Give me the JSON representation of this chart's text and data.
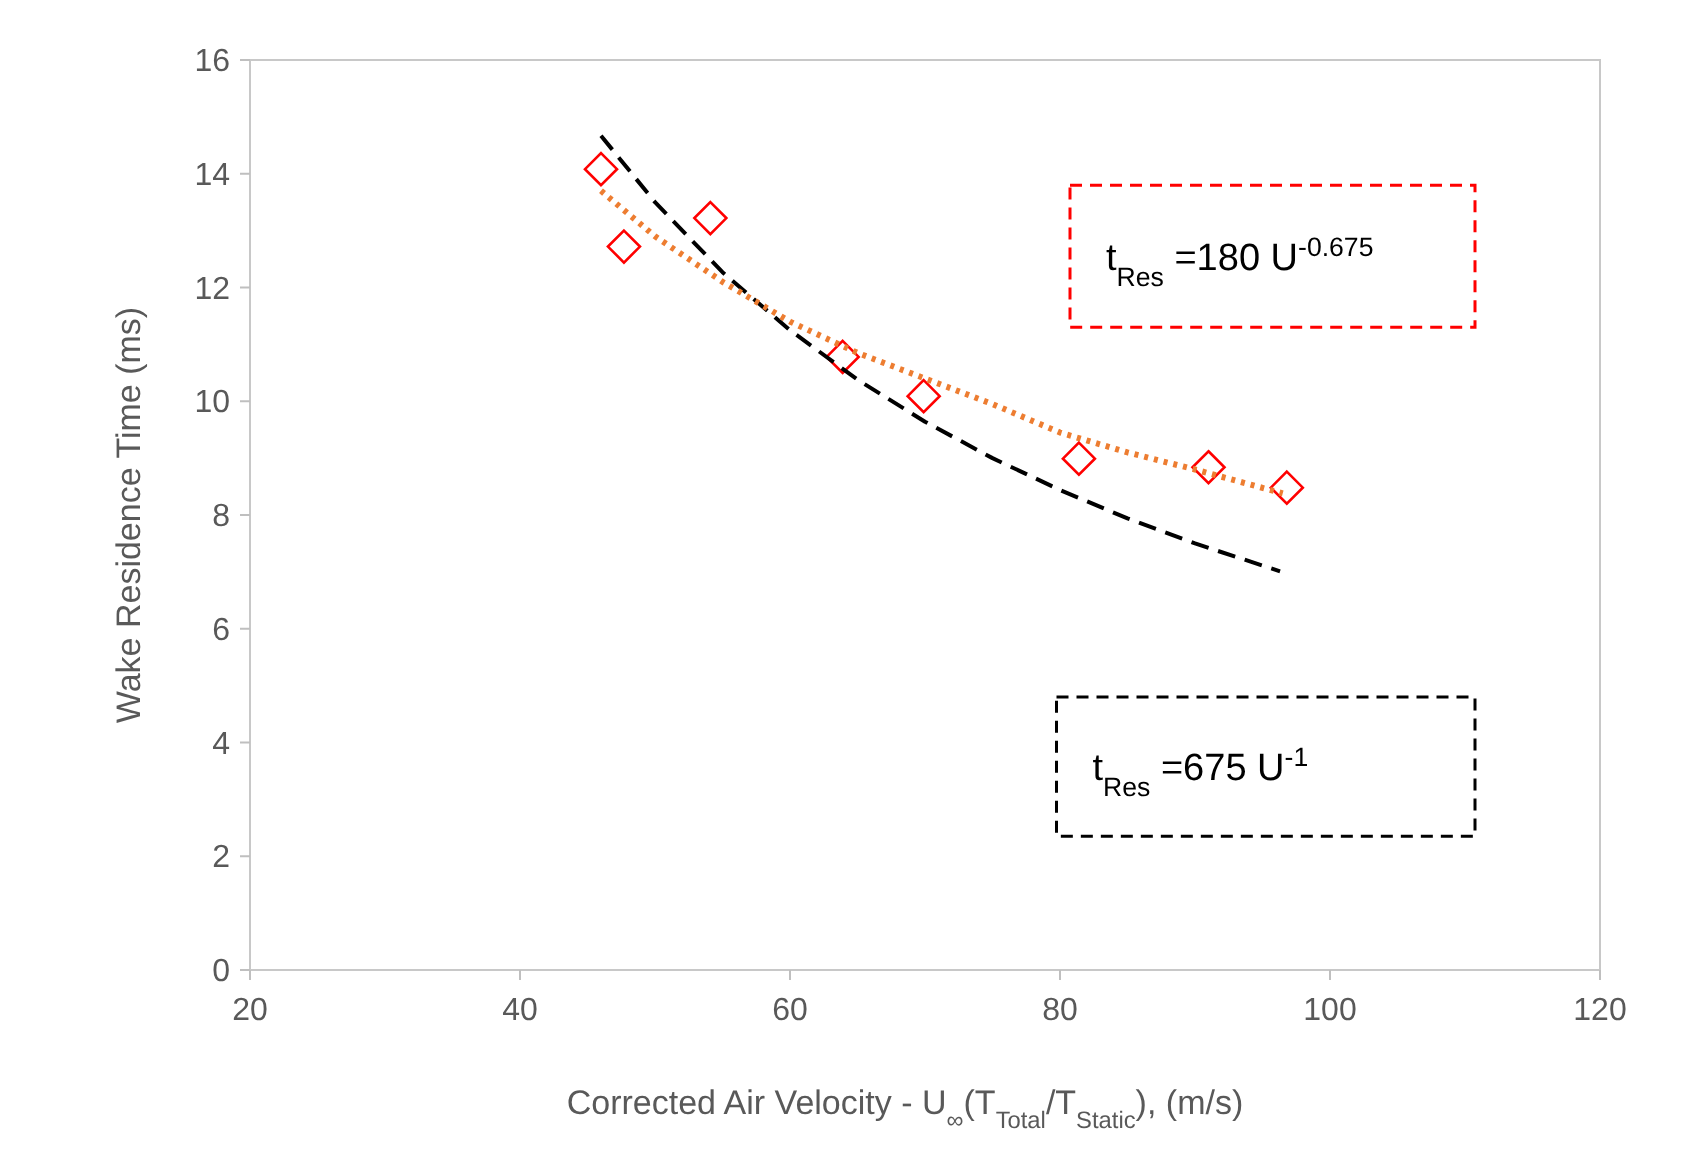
{
  "chart_data": {
    "type": "scatter",
    "xlabel": "Corrected Air Velocity - U$_{∞}$(T$_{Total}$/T$_{Static}$),  (m/s)",
    "ylabel": "Wake Residence Time (ms)",
    "xlim": [
      20,
      120
    ],
    "xticks": [
      20,
      40,
      60,
      80,
      100,
      120
    ],
    "ylim": [
      0,
      16
    ],
    "yticks": [
      0,
      2,
      4,
      6,
      8,
      10,
      12,
      14,
      16
    ],
    "grid": false,
    "series": [
      {
        "type": "scatter",
        "color": "#ff0000",
        "marker": "diamond",
        "x": [
          46,
          47.7,
          54.1,
          63.9,
          69.9,
          81.4,
          91.0,
          96.8
        ],
        "values": [
          14.08,
          12.72,
          13.22,
          10.78,
          10.09,
          8.99,
          8.84,
          8.48
        ]
      },
      {
        "type": "line",
        "color": "#000000",
        "line_style": "dashed",
        "marker": "none",
        "x": [
          46,
          50,
          55,
          60,
          65,
          70,
          75,
          80,
          85,
          90,
          96.3
        ],
        "values": [
          14.67,
          13.5,
          12.27,
          11.25,
          10.38,
          9.64,
          9.0,
          8.44,
          7.94,
          7.5,
          7.01
        ]
      },
      {
        "type": "line",
        "color": "#ed7d31",
        "line_style": "dotted",
        "marker": "none",
        "x": [
          46,
          50,
          55,
          60,
          65,
          70,
          75,
          80,
          85,
          90,
          96.5
        ],
        "values": [
          13.7,
          12.9,
          12.1,
          11.4,
          10.85,
          10.4,
          9.95,
          9.45,
          9.1,
          8.8,
          8.38
        ]
      }
    ],
    "annotations": [
      "t$_{Res}$ =180 U$^{-0.675}$",
      "t$_{Res}$ =675 U$^{-1}$"
    ]
  }
}
